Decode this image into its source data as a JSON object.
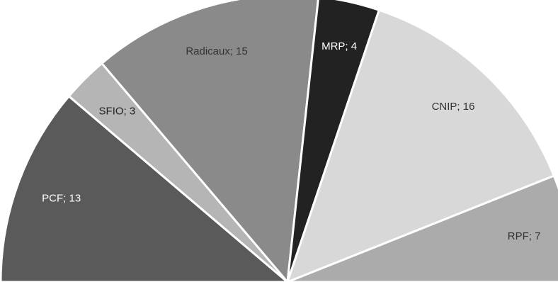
{
  "chart_data": {
    "type": "pie",
    "variant": "semicircle (parliament style)",
    "title": "",
    "slices": [
      {
        "label": "PCF; 13",
        "name": "PCF",
        "value": 13,
        "color": "#5a5a5a",
        "label_color": "#ffffff"
      },
      {
        "label": "SFIO; 3",
        "name": "SFIO",
        "value": 3,
        "color": "#b5b5b5",
        "label_color": "#222222"
      },
      {
        "label": "Radicaux; 15",
        "name": "Radicaux",
        "value": 15,
        "color": "#8a8a8a",
        "label_color": "#333333"
      },
      {
        "label": "MRP; 4",
        "name": "MRP",
        "value": 4,
        "color": "#222222",
        "label_color": "#ffffff"
      },
      {
        "label": "CNIP; 16",
        "name": "CNIP",
        "value": 16,
        "color": "#d8d8d8",
        "label_color": "#333333"
      },
      {
        "label": "RPF; 7",
        "name": "RPF",
        "value": 7,
        "color": "#ababab",
        "label_color": "#333333"
      }
    ]
  }
}
